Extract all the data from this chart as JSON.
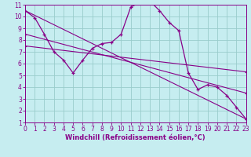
{
  "xlabel": "Windchill (Refroidissement éolien,°C)",
  "background_color": "#c6edf0",
  "line_color": "#880088",
  "grid_color": "#99cccc",
  "main_x": [
    0,
    1,
    2,
    3,
    4,
    5,
    6,
    7,
    8,
    9,
    10,
    11,
    12,
    13,
    14,
    15,
    16,
    17,
    18,
    19,
    20,
    21,
    22,
    23
  ],
  "main_y": [
    10.5,
    9.9,
    8.5,
    7.0,
    6.3,
    5.2,
    6.3,
    7.3,
    7.7,
    7.8,
    8.5,
    10.8,
    11.2,
    11.3,
    10.5,
    9.5,
    8.8,
    5.2,
    3.8,
    4.2,
    4.0,
    3.3,
    2.3,
    1.3
  ],
  "trend1_x": [
    0,
    23
  ],
  "trend1_y": [
    10.5,
    1.3
  ],
  "trend2_x": [
    0,
    23
  ],
  "trend2_y": [
    8.5,
    3.5
  ],
  "trend3_x": [
    0,
    23
  ],
  "trend3_y": [
    7.5,
    5.3
  ],
  "xlim": [
    0,
    23
  ],
  "ylim": [
    1,
    11
  ],
  "xticks": [
    0,
    1,
    2,
    3,
    4,
    5,
    6,
    7,
    8,
    9,
    10,
    11,
    12,
    13,
    14,
    15,
    16,
    17,
    18,
    19,
    20,
    21,
    22,
    23
  ],
  "yticks": [
    1,
    2,
    3,
    4,
    5,
    6,
    7,
    8,
    9,
    10,
    11
  ],
  "tick_fontsize": 5.5,
  "label_fontsize": 6.0
}
